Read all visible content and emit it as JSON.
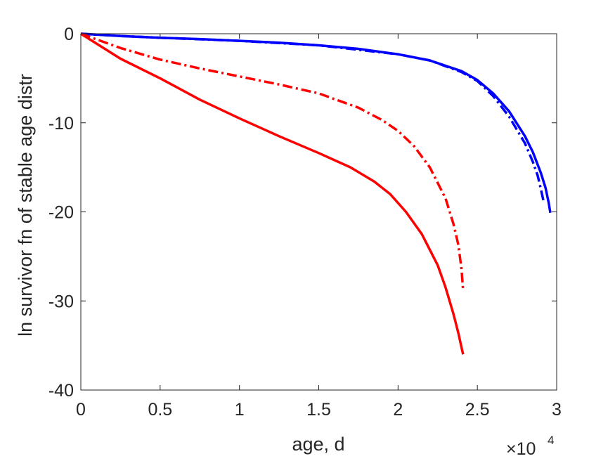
{
  "chart_data": {
    "type": "line",
    "title": "",
    "xlabel": "age, d",
    "ylabel": "ln survivor fn of stable age distr",
    "x_multiplier_label": {
      "base": "×10",
      "exponent": "4"
    },
    "xlim": [
      0,
      3
    ],
    "ylim": [
      -40,
      0
    ],
    "x_ticks": [
      0,
      0.5,
      1,
      1.5,
      2,
      2.5,
      3
    ],
    "x_tick_labels": [
      "0",
      "0.5",
      "1",
      "1.5",
      "2",
      "2.5",
      "3"
    ],
    "y_ticks": [
      0,
      -10,
      -20,
      -30,
      -40
    ],
    "y_tick_labels": [
      "0",
      "-10",
      "-20",
      "-30",
      "-40"
    ],
    "grid": false,
    "legend": "none",
    "series": [
      {
        "color": "#0000ff",
        "style": "solid",
        "x": [
          0,
          0.1,
          0.25,
          0.5,
          0.75,
          1.0,
          1.25,
          1.5,
          1.75,
          2.0,
          2.2,
          2.4,
          2.5,
          2.6,
          2.7,
          2.8,
          2.85,
          2.9,
          2.93,
          2.95,
          2.96
        ],
        "y": [
          0,
          -0.1,
          -0.25,
          -0.45,
          -0.6,
          -0.8,
          -1.0,
          -1.3,
          -1.7,
          -2.3,
          -3.0,
          -4.2,
          -5.2,
          -6.7,
          -8.7,
          -11.5,
          -13.3,
          -15.6,
          -17.3,
          -19.0,
          -20.1
        ]
      },
      {
        "color": "#0000ff",
        "style": "dashdot",
        "x": [
          0,
          0.25,
          0.5,
          1.0,
          1.5,
          2.0,
          2.2,
          2.4,
          2.5,
          2.6,
          2.7,
          2.8,
          2.85,
          2.88,
          2.9,
          2.92
        ],
        "y": [
          0,
          -0.25,
          -0.45,
          -0.8,
          -1.3,
          -2.3,
          -3.0,
          -4.3,
          -5.3,
          -7.0,
          -9.3,
          -12.3,
          -14.4,
          -15.9,
          -17.4,
          -19.0
        ]
      },
      {
        "color": "#ff0000",
        "style": "solid",
        "x": [
          0,
          0.25,
          0.5,
          0.75,
          1.0,
          1.25,
          1.5,
          1.7,
          1.85,
          1.95,
          2.05,
          2.15,
          2.25,
          2.3,
          2.35,
          2.38,
          2.4,
          2.41
        ],
        "y": [
          0,
          -2.8,
          -5.0,
          -7.4,
          -9.5,
          -11.5,
          -13.4,
          -15.0,
          -16.6,
          -18.0,
          -20.0,
          -22.5,
          -26.0,
          -28.5,
          -31.5,
          -33.6,
          -35.2,
          -36.0
        ]
      },
      {
        "color": "#ff0000",
        "style": "dashdot",
        "x": [
          0,
          0.25,
          0.5,
          0.75,
          1.0,
          1.25,
          1.5,
          1.75,
          1.9,
          2.0,
          2.1,
          2.2,
          2.3,
          2.35,
          2.38,
          2.4,
          2.41
        ],
        "y": [
          0,
          -1.6,
          -2.9,
          -3.9,
          -4.8,
          -5.7,
          -6.7,
          -8.3,
          -9.7,
          -10.9,
          -12.6,
          -15.0,
          -18.5,
          -21.4,
          -23.7,
          -26.4,
          -28.8
        ]
      }
    ]
  }
}
